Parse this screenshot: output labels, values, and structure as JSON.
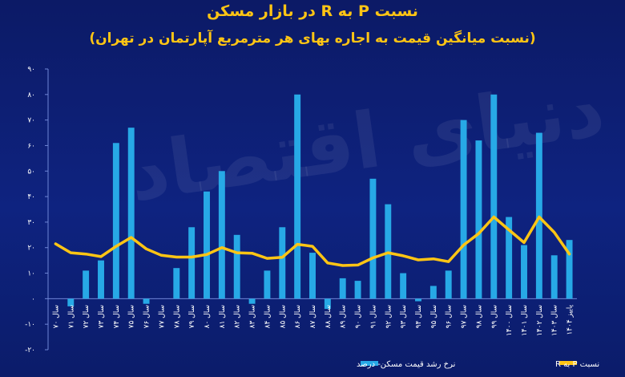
{
  "watermark": "دنیای اقتصاد",
  "chart_data": {
    "type": "bar",
    "title": "نسبت P به R در بازار مسکن",
    "subtitle": "(نسبت میانگین قیمت به اجاره بهای هر مترمربع آپارتمان در تهران)",
    "ylim": [
      -20,
      90
    ],
    "yticks": [
      -20,
      -10,
      0,
      10,
      20,
      30,
      40,
      50,
      60,
      70,
      80,
      90
    ],
    "ytick_labels": [
      "-۲۰",
      "-۱۰",
      "۰",
      "۱۰",
      "۲۰",
      "۳۰",
      "۴۰",
      "۵۰",
      "۶۰",
      "۷۰",
      "۸۰",
      "۹۰"
    ],
    "legend_position": "bottom",
    "categories": [
      "سال ۷۰",
      "سال ۷۱",
      "سال ۷۲",
      "سال ۷۳",
      "سال ۷۴",
      "سال ۷۵",
      "سال ۷۶",
      "سال ۷۷",
      "سال ۷۸",
      "سال ۷۹",
      "سال ۸۰",
      "سال ۸۱",
      "سال ۸۲",
      "سال ۸۳",
      "سال ۸۴",
      "سال ۸۵",
      "سال ۸۶",
      "سال ۸۷",
      "سال ۸۸",
      "سال ۸۹",
      "سال ۹۰",
      "سال ۹۱",
      "سال ۹۲",
      "سال ۹۳",
      "سال ۹۴",
      "سال ۹۵",
      "سال ۹۶",
      "سال ۹۷",
      "سال ۹۸",
      "سال ۹۹",
      "سال ۱۴۰۰",
      "سال ۱۴۰۱",
      "سال ۱۴۰۲",
      "سال ۱۴۰۳",
      "پاییز ۱۴۰۴"
    ],
    "series": [
      {
        "name": "نرخ رشد قیمت مسکن- درصد",
        "type": "bar",
        "color": "#27a9e6",
        "values": [
          0,
          -3,
          11,
          15,
          61,
          67,
          -2,
          0,
          12,
          28,
          42,
          50,
          25,
          -2,
          11,
          28,
          80,
          18,
          -4,
          8,
          7,
          47,
          37,
          10,
          -1,
          5,
          11,
          70,
          62,
          80,
          32,
          21,
          65,
          17,
          23
        ]
      },
      {
        "name": "نسبت P به R",
        "type": "line",
        "color": "#ffc514",
        "values": [
          21.5,
          18,
          17.5,
          16.5,
          20.5,
          24,
          19.5,
          17,
          16.3,
          16.3,
          17.3,
          20,
          18,
          17.8,
          15.8,
          16.2,
          21.3,
          20.5,
          14,
          13,
          13.2,
          16,
          18,
          16.8,
          15.2,
          15.6,
          14.5,
          21,
          25.5,
          32,
          27,
          22,
          32,
          26,
          17.5
        ]
      }
    ]
  }
}
